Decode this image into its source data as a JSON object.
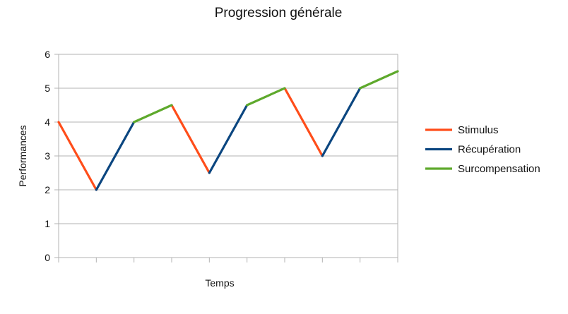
{
  "chart_data": {
    "type": "line",
    "title": "Progression générale",
    "xlabel": "Temps",
    "ylabel": "Performances",
    "ylim": [
      0,
      6
    ],
    "yticks": [
      0,
      1,
      2,
      3,
      4,
      5,
      6
    ],
    "xlim": [
      0,
      9
    ],
    "grid": true,
    "legend_position": "right",
    "series": [
      {
        "name": "Stimulus",
        "color": "#ff4d1a",
        "segments": [
          [
            [
              0,
              4
            ],
            [
              1,
              2
            ]
          ],
          [
            [
              3,
              4.5
            ],
            [
              4,
              2.5
            ]
          ],
          [
            [
              6,
              5
            ],
            [
              7,
              3
            ]
          ]
        ]
      },
      {
        "name": "Récupération",
        "color": "#0b4680",
        "segments": [
          [
            [
              1,
              2
            ],
            [
              2,
              4
            ]
          ],
          [
            [
              4,
              2.5
            ],
            [
              5,
              4.5
            ]
          ],
          [
            [
              7,
              3
            ],
            [
              8,
              5
            ]
          ]
        ]
      },
      {
        "name": "Surcompensation",
        "color": "#5ea92c",
        "segments": [
          [
            [
              2,
              4
            ],
            [
              3,
              4.5
            ]
          ],
          [
            [
              5,
              4.5
            ],
            [
              6,
              5
            ]
          ],
          [
            [
              8,
              5
            ],
            [
              9,
              5.5
            ]
          ]
        ]
      }
    ]
  }
}
